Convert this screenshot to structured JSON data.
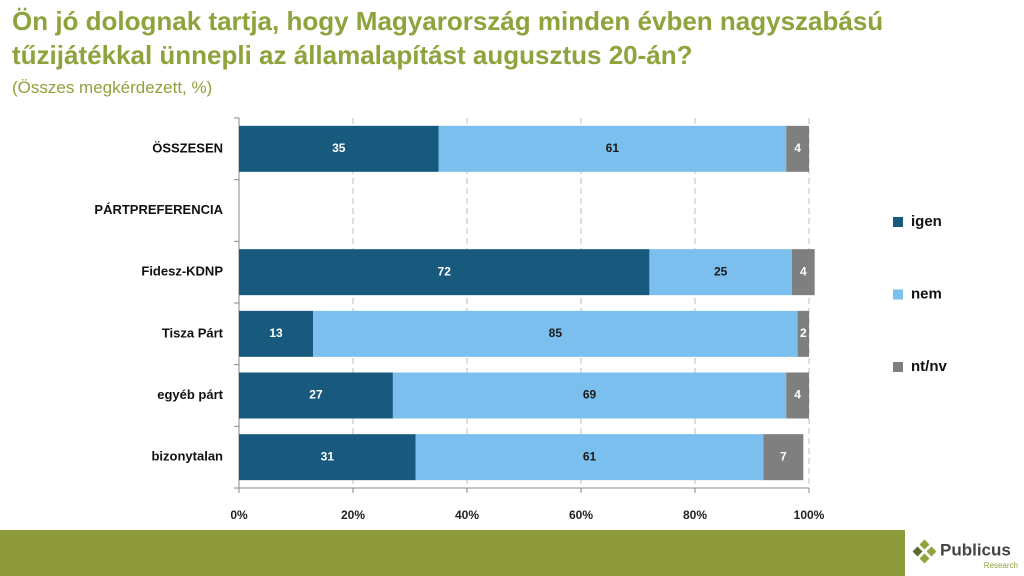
{
  "chart_data": {
    "type": "stacked-bar-horizontal",
    "title": "Ön jó dolognak tartja, hogy Magyarország minden évben nagyszabású tűzijátékkal ünnepli az államalapítást augusztus 20-án?",
    "subtitle": "(Összes megkérdezett, %)",
    "categories": [
      "ÖSSZESEN",
      "PÁRTPREFERENCIA",
      "Fidesz-KDNP",
      "Tisza Párt",
      "egyéb párt",
      "bizonytalan"
    ],
    "series": [
      {
        "name": "igen",
        "color": "#175a7e",
        "label_color": "#ffffff",
        "values": [
          35,
          null,
          72,
          13,
          27,
          31
        ]
      },
      {
        "name": "nem",
        "color": "#7bbfee",
        "label_color": "#1a1a1a",
        "values": [
          61,
          null,
          25,
          85,
          69,
          61
        ]
      },
      {
        "name": "nt/nv",
        "color": "#7f7f7f",
        "label_color": "#ffffff",
        "values": [
          4,
          null,
          4,
          2,
          4,
          7
        ]
      }
    ],
    "xlim": [
      0,
      100
    ],
    "xticks": [
      {
        "value": 0,
        "label": "0%"
      },
      {
        "value": 20,
        "label": "20%"
      },
      {
        "value": 40,
        "label": "40%"
      },
      {
        "value": 60,
        "label": "60%"
      },
      {
        "value": 80,
        "label": "80%"
      },
      {
        "value": 100,
        "label": "100%"
      }
    ],
    "grid": true,
    "legend": "right"
  },
  "logo": {
    "name": "Publicus",
    "tagline": "Research"
  }
}
